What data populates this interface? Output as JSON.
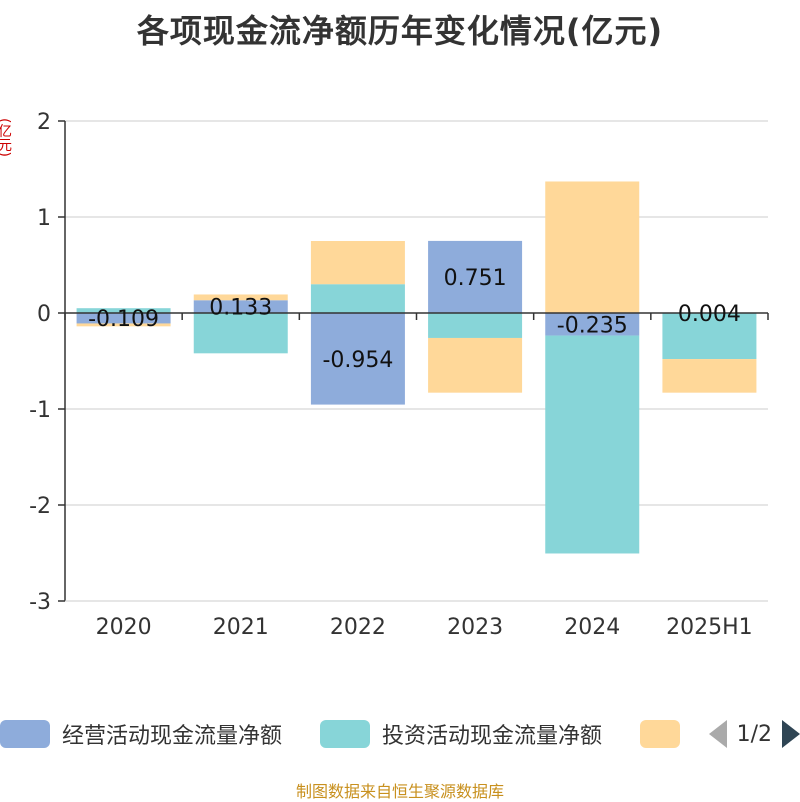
{
  "title": "各项现金流净额历年变化情况(亿元)",
  "unit_label": "(亿元)",
  "footer": "制图数据来自恒生聚源数据库",
  "legend": {
    "items": [
      {
        "label": "经营活动现金流量净额",
        "color": "#8eacdb"
      },
      {
        "label": "投资活动现金流量净额",
        "color": "#87d5d8"
      },
      {
        "label": "",
        "color": "#ffd899"
      }
    ],
    "page": "1/2"
  },
  "chart_data": {
    "type": "bar",
    "stacked": true,
    "categories": [
      "2020",
      "2021",
      "2022",
      "2023",
      "2024",
      "2025H1"
    ],
    "ylim": [
      -3,
      2
    ],
    "yticks": [
      2,
      1,
      0,
      -1,
      -2,
      -3
    ],
    "grid": true,
    "legend_position": "bottom",
    "series": [
      {
        "name": "经营活动现金流量净额",
        "color": "#8eacdb",
        "values": [
          -0.109,
          0.133,
          -0.954,
          0.751,
          -0.235,
          0.004
        ],
        "labels": [
          "-0.109",
          "0.133",
          "-0.954",
          "0.751",
          "-0.235",
          "0.004"
        ]
      },
      {
        "name": "投资活动现金流量净额",
        "color": "#87d5d8",
        "values": [
          0.05,
          -0.42,
          0.3,
          -0.26,
          -2.27,
          -0.48
        ]
      },
      {
        "color": "#ffd899",
        "values": [
          -0.03,
          0.06,
          0.45,
          -0.57,
          1.37,
          -0.35
        ]
      }
    ]
  }
}
